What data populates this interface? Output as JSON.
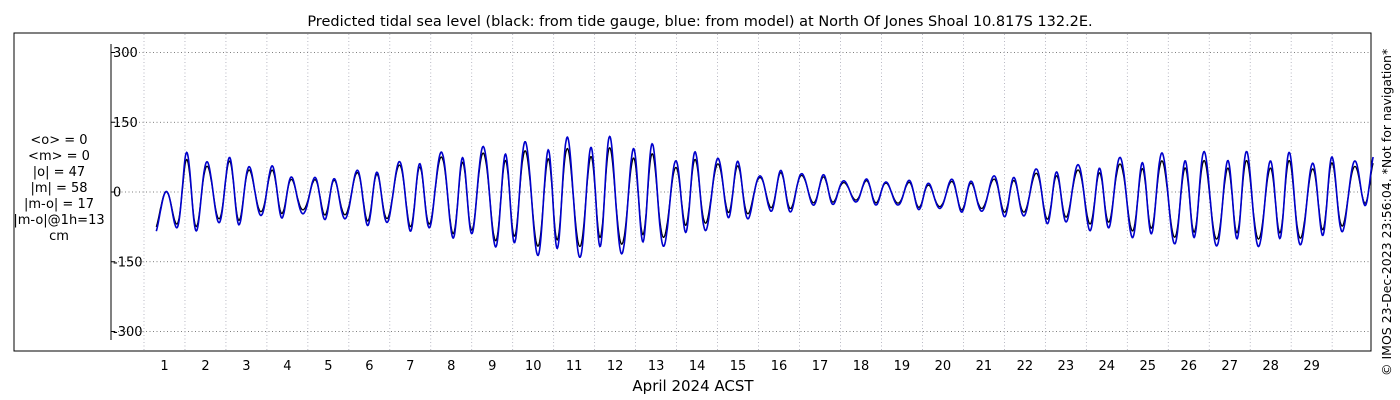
{
  "chart_data": {
    "type": "line",
    "title": "Predicted tidal sea level (black: from tide gauge, blue: from model) at North Of Jones Shoal 10.817S 132.2E.",
    "xlabel": "April 2024 ACST",
    "ylabel": "",
    "x_ticks": [
      "1",
      "2",
      "3",
      "4",
      "5",
      "6",
      "7",
      "8",
      "9",
      "10",
      "11",
      "12",
      "13",
      "14",
      "15",
      "16",
      "17",
      "18",
      "19",
      "20",
      "21",
      "22",
      "23",
      "24",
      "25",
      "26",
      "27",
      "28",
      "29"
    ],
    "y_ticks": [
      "300",
      "150",
      "0",
      "-150",
      "-300"
    ],
    "ylim": [
      -300,
      300
    ],
    "xlim_days": [
      0.3,
      30.0
    ],
    "grid": true,
    "stats_lines": [
      "<o> = 0",
      "<m> = 0",
      "|o| = 47",
      "|m| = 58",
      "|m-o| = 17",
      "|m-o|@1h=13",
      "cm"
    ],
    "side_note": "© IMOS 23-Dec-2023 23:56:04. *Not for navigation*",
    "series": [
      {
        "color": "#000000",
        "envelope_days": [
          0.3,
          1,
          2,
          3,
          4,
          5,
          6,
          7,
          8,
          9,
          10,
          11,
          12,
          13,
          14,
          15,
          16,
          17,
          18,
          19,
          20,
          21,
          22,
          23,
          24,
          25,
          26,
          27,
          28,
          29,
          30
        ],
        "high_cm": [
          -20,
          72,
          70,
          52,
          25,
          40,
          55,
          75,
          85,
          90,
          95,
          100,
          95,
          70,
          75,
          40,
          45,
          25,
          25,
          20,
          25,
          30,
          45,
          50,
          65,
          70,
          70,
          70,
          70,
          65,
          70
        ],
        "low_cm": [
          -85,
          -80,
          -70,
          -50,
          -45,
          -60,
          -70,
          -85,
          -100,
          -115,
          -125,
          -120,
          -115,
          -95,
          -60,
          -45,
          -35,
          -20,
          -25,
          -35,
          -40,
          -45,
          -60,
          -70,
          -85,
          -100,
          -105,
          -105,
          -105,
          -95,
          -20
        ]
      },
      {
        "color": "#0000cc",
        "envelope_days": [
          0.3,
          1,
          2,
          3,
          4,
          5,
          6,
          7,
          8,
          9,
          10,
          11,
          12,
          13,
          14,
          15,
          16,
          17,
          18,
          19,
          20,
          21,
          22,
          23,
          24,
          25,
          26,
          27,
          28,
          29,
          30
        ],
        "high_cm": [
          -25,
          88,
          78,
          62,
          30,
          45,
          62,
          85,
          98,
          108,
          120,
          125,
          120,
          88,
          90,
          45,
          50,
          30,
          28,
          25,
          30,
          38,
          55,
          62,
          80,
          88,
          90,
          90,
          88,
          78,
          85
        ],
        "low_cm": [
          -95,
          -90,
          -80,
          -60,
          -55,
          -70,
          -80,
          -95,
          -110,
          -132,
          -148,
          -145,
          -135,
          -115,
          -75,
          -55,
          -42,
          -25,
          -30,
          -40,
          -45,
          -55,
          -70,
          -85,
          -100,
          -115,
          -120,
          -122,
          -120,
          -110,
          -25
        ]
      }
    ]
  }
}
